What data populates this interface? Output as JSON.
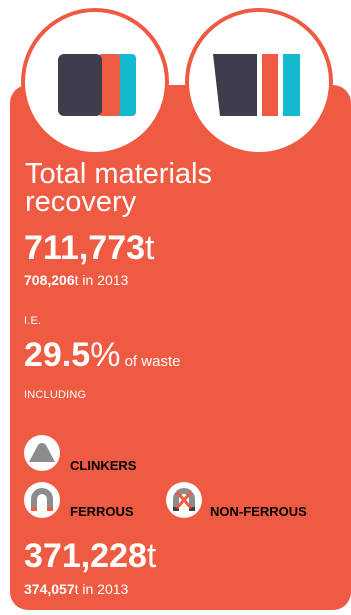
{
  "colors": {
    "accent": "#ef5b42",
    "dark": "#3d3d4b",
    "cyan": "#14b9d0",
    "icon_gray": "#8c8c8c"
  },
  "icons": [
    "materials-stack-icon",
    "materials-bin-icon",
    "clinker-icon",
    "ferrous-magnet-icon",
    "non-ferrous-magnet-icon"
  ],
  "title": "Total materials recovery",
  "total": {
    "value": "711,773",
    "unit": "t"
  },
  "previous_total": {
    "value": "708,206",
    "unit": "t",
    "suffix": " in 2013"
  },
  "ie_label": "I.E.",
  "percent": {
    "value": "29.5",
    "unit": "%",
    "suffix": " of waste"
  },
  "including_label": "INCLUDING",
  "materials": {
    "clinkers": "CLINKERS",
    "ferrous": "FERROUS",
    "non_ferrous": "NON-FERROUS"
  },
  "metals_total": {
    "value": "371,228",
    "unit": "t"
  },
  "previous_metals": {
    "value": "374,057",
    "unit": "t",
    "suffix": " in 2013"
  }
}
